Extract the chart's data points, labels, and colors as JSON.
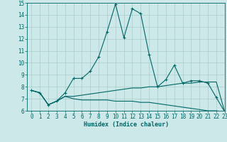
{
  "xlabel": "Humidex (Indice chaleur)",
  "xlim": [
    -0.5,
    23
  ],
  "ylim": [
    6,
    15
  ],
  "yticks": [
    6,
    7,
    8,
    9,
    10,
    11,
    12,
    13,
    14,
    15
  ],
  "xticks": [
    0,
    1,
    2,
    3,
    4,
    5,
    6,
    7,
    8,
    9,
    10,
    11,
    12,
    13,
    14,
    15,
    16,
    17,
    18,
    19,
    20,
    21,
    22,
    23
  ],
  "bg_color": "#cce8e8",
  "grid_color": "#aacccc",
  "line_color": "#006666",
  "line1_x": [
    0,
    1,
    2,
    3,
    4,
    5,
    6,
    7,
    8,
    9,
    10,
    11,
    12,
    13,
    14,
    15,
    16,
    17,
    18,
    19,
    20,
    21,
    22,
    23
  ],
  "line1_y": [
    7.7,
    7.5,
    6.5,
    6.8,
    7.5,
    8.7,
    8.7,
    9.3,
    10.5,
    12.6,
    14.9,
    12.1,
    14.5,
    14.1,
    10.7,
    8.0,
    8.6,
    9.8,
    8.3,
    8.5,
    8.5,
    8.3,
    7.1,
    5.9
  ],
  "line2_x": [
    0,
    1,
    2,
    3,
    4,
    5,
    6,
    7,
    8,
    9,
    10,
    11,
    12,
    13,
    14,
    15,
    16,
    17,
    18,
    19,
    20,
    21,
    22,
    23
  ],
  "line2_y": [
    7.7,
    7.5,
    6.5,
    6.8,
    7.2,
    7.0,
    6.9,
    6.9,
    6.9,
    6.9,
    6.8,
    6.8,
    6.8,
    6.7,
    6.7,
    6.6,
    6.5,
    6.4,
    6.3,
    6.2,
    6.1,
    6.0,
    6.0,
    5.9
  ],
  "line3_x": [
    0,
    1,
    2,
    3,
    4,
    5,
    6,
    7,
    8,
    9,
    10,
    11,
    12,
    13,
    14,
    15,
    16,
    17,
    18,
    19,
    20,
    21,
    22,
    23
  ],
  "line3_y": [
    7.7,
    7.5,
    6.5,
    6.8,
    7.2,
    7.2,
    7.3,
    7.4,
    7.5,
    7.6,
    7.7,
    7.8,
    7.9,
    7.9,
    8.0,
    8.0,
    8.1,
    8.2,
    8.3,
    8.3,
    8.4,
    8.4,
    8.4,
    5.9
  ]
}
